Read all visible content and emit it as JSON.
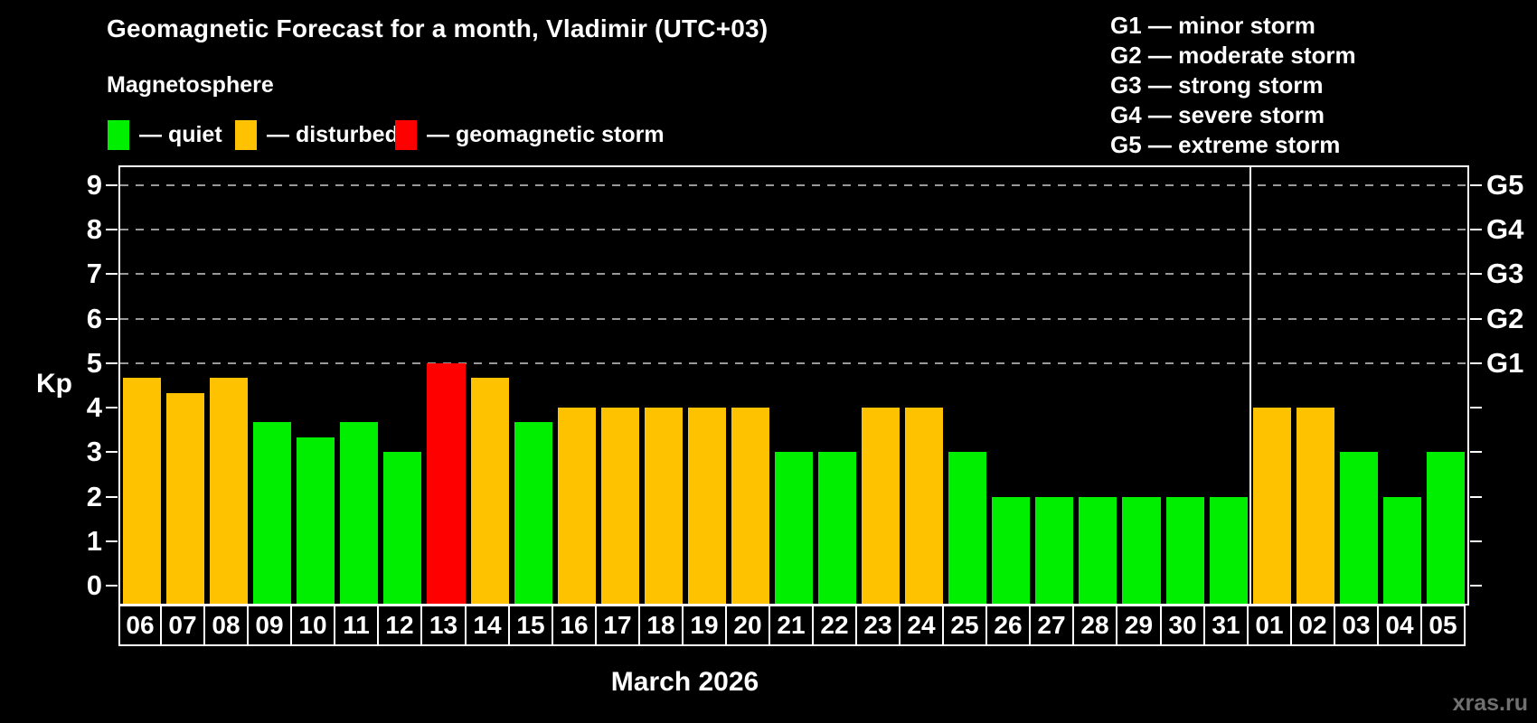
{
  "header": {
    "title": "Geomagnetic Forecast for a month, Vladimir (UTC+03)",
    "subtitle": "Magnetosphere"
  },
  "legend": {
    "items": [
      {
        "key": "quiet",
        "label": "— quiet",
        "color": "#00ee00"
      },
      {
        "key": "disturbed",
        "label": "— disturbed",
        "color": "#ffc200"
      },
      {
        "key": "storm",
        "label": "— geomagnetic storm",
        "color": "#ff0000"
      }
    ]
  },
  "g_scale_legend": {
    "items": [
      "G1 — minor storm",
      "G2 — moderate storm",
      "G3 — strong storm",
      "G4 — severe storm",
      "G5 — extreme storm"
    ]
  },
  "axes": {
    "y_label": "Kp",
    "y_ticks": [
      0,
      1,
      2,
      3,
      4,
      5,
      6,
      7,
      8,
      9
    ],
    "right_labels": [
      {
        "value": 5,
        "label": "G1"
      },
      {
        "value": 6,
        "label": "G2"
      },
      {
        "value": 7,
        "label": "G3"
      },
      {
        "value": 8,
        "label": "G4"
      },
      {
        "value": 9,
        "label": "G5"
      }
    ]
  },
  "footer": {
    "x_axis_title": "March 2026",
    "watermark": "xras.ru"
  },
  "chart_data": {
    "type": "bar",
    "title": "Geomagnetic Forecast for a month, Vladimir (UTC+03)",
    "subtitle": "Magnetosphere",
    "ylabel": "Kp",
    "xlabel": "March 2026",
    "ylim": [
      -0.4,
      9.4
    ],
    "yticks": [
      0,
      1,
      2,
      3,
      4,
      5,
      6,
      7,
      8,
      9
    ],
    "gridlines_at": [
      5,
      6,
      7,
      8,
      9
    ],
    "grid_color": "#999999",
    "grid_style": "dashed",
    "legend_position": "top-left",
    "categories": [
      "06",
      "07",
      "08",
      "09",
      "10",
      "11",
      "12",
      "13",
      "14",
      "15",
      "16",
      "17",
      "18",
      "19",
      "20",
      "21",
      "22",
      "23",
      "24",
      "25",
      "26",
      "27",
      "28",
      "29",
      "30",
      "31",
      "01",
      "02",
      "03",
      "04",
      "05"
    ],
    "values": [
      4.67,
      4.33,
      4.67,
      3.67,
      3.33,
      3.67,
      3,
      5,
      4.67,
      3.67,
      4,
      4,
      4,
      4,
      4,
      3,
      3,
      4,
      4,
      3,
      2,
      2,
      2,
      2,
      2,
      2,
      4,
      4,
      3,
      2,
      3
    ],
    "statuses": [
      "disturbed",
      "disturbed",
      "disturbed",
      "quiet",
      "quiet",
      "quiet",
      "quiet",
      "storm",
      "disturbed",
      "quiet",
      "disturbed",
      "disturbed",
      "disturbed",
      "disturbed",
      "disturbed",
      "quiet",
      "quiet",
      "disturbed",
      "disturbed",
      "quiet",
      "quiet",
      "quiet",
      "quiet",
      "quiet",
      "quiet",
      "quiet",
      "disturbed",
      "disturbed",
      "quiet",
      "quiet",
      "quiet"
    ],
    "status_colors": {
      "quiet": "#00ee00",
      "disturbed": "#ffc200",
      "storm": "#ff0000"
    },
    "right_axis_labels": [
      {
        "value": 5,
        "label": "G1"
      },
      {
        "value": 6,
        "label": "G2"
      },
      {
        "value": 7,
        "label": "G3"
      },
      {
        "value": 8,
        "label": "G4"
      },
      {
        "value": 9,
        "label": "G5"
      }
    ],
    "month_separator_after_index": 25
  }
}
